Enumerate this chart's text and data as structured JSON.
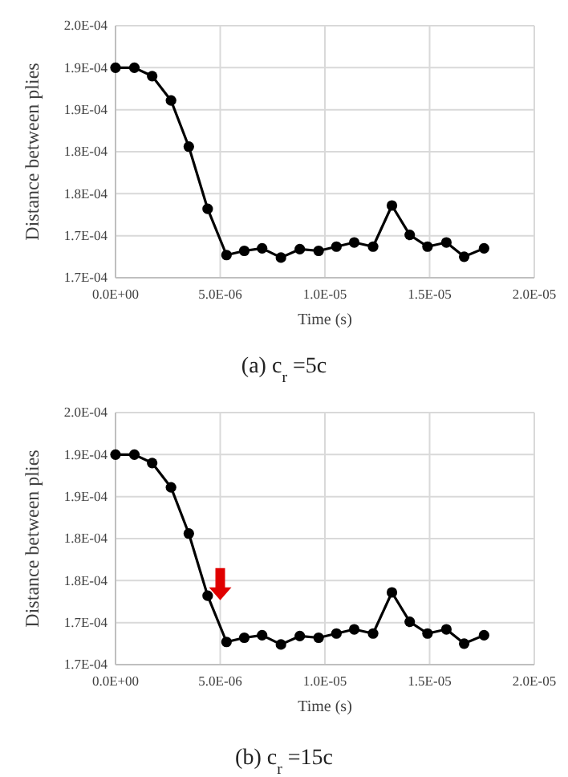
{
  "chart_data": [
    {
      "type": "line",
      "title": "(a)  c$_{r}$ =5c",
      "xlabel": "Time (s)",
      "ylabel": "Distance between plies",
      "x": [
        0,
        9e-07,
        1.75e-06,
        2.65e-06,
        3.5e-06,
        4.4e-06,
        5.3e-06,
        6.15e-06,
        7e-06,
        7.9e-06,
        8.8e-06,
        9.7e-06,
        1.055e-05,
        1.14e-05,
        1.23e-05,
        1.32e-05,
        1.405e-05,
        1.49e-05,
        1.58e-05,
        1.665e-05,
        1.76e-05
      ],
      "values": [
        0.000195,
        0.000195,
        0.000194,
        0.0001911,
        0.0001856,
        0.0001782,
        0.0001727,
        0.0001732,
        0.0001735,
        0.0001724,
        0.0001734,
        0.0001732,
        0.0001737,
        0.0001742,
        0.0001737,
        0.0001786,
        0.0001751,
        0.0001737,
        0.0001742,
        0.0001725,
        0.0001735
      ],
      "color": "#000000",
      "marker": "circle",
      "grid": true,
      "xlim": [
        0,
        2e-05
      ],
      "ylim": [
        0.00017,
        0.0002
      ],
      "xticks": [
        {
          "value": 0,
          "label": "0.0E+00"
        },
        {
          "value": 5e-06,
          "label": "5.0E-06"
        },
        {
          "value": 1e-05,
          "label": "1.0E-05"
        },
        {
          "value": 1.5e-05,
          "label": "1.5E-05"
        },
        {
          "value": 2e-05,
          "label": "2.0E-05"
        }
      ],
      "yticks": [
        {
          "value": 0.00017,
          "label": "1.7E-04"
        },
        {
          "value": 0.000175,
          "label": "1.7E-04"
        },
        {
          "value": 0.00018,
          "label": "1.8E-04"
        },
        {
          "value": 0.000185,
          "label": "1.8E-04"
        },
        {
          "value": 0.00019,
          "label": "1.9E-04"
        },
        {
          "value": 0.000195,
          "label": "1.9E-04"
        },
        {
          "value": 0.0002,
          "label": "2.0E-04"
        }
      ]
    },
    {
      "type": "line",
      "title": "(b)  c$_{r}$ =15c",
      "xlabel": "Time (s)",
      "ylabel": "Distance between plies",
      "x": [
        0,
        9e-07,
        1.75e-06,
        2.65e-06,
        3.5e-06,
        4.4e-06,
        5.3e-06,
        6.15e-06,
        7e-06,
        7.9e-06,
        8.8e-06,
        9.7e-06,
        1.055e-05,
        1.14e-05,
        1.23e-05,
        1.32e-05,
        1.405e-05,
        1.49e-05,
        1.58e-05,
        1.665e-05,
        1.76e-05
      ],
      "values": [
        0.000195,
        0.000195,
        0.000194,
        0.0001911,
        0.0001856,
        0.0001782,
        0.0001727,
        0.0001732,
        0.0001735,
        0.0001724,
        0.0001734,
        0.0001732,
        0.0001737,
        0.0001742,
        0.0001737,
        0.0001786,
        0.0001751,
        0.0001737,
        0.0001742,
        0.0001725,
        0.0001735
      ],
      "color": "#000000",
      "marker": "circle",
      "grid": true,
      "xlim": [
        0,
        2e-05
      ],
      "ylim": [
        0.00017,
        0.0002
      ],
      "xticks": [
        {
          "value": 0,
          "label": "0.0E+00"
        },
        {
          "value": 5e-06,
          "label": "5.0E-06"
        },
        {
          "value": 1e-05,
          "label": "1.0E-05"
        },
        {
          "value": 1.5e-05,
          "label": "1.5E-05"
        },
        {
          "value": 2e-05,
          "label": "2.0E-05"
        }
      ],
      "yticks": [
        {
          "value": 0.00017,
          "label": "1.7E-04"
        },
        {
          "value": 0.000175,
          "label": "1.7E-04"
        },
        {
          "value": 0.00018,
          "label": "1.8E-04"
        },
        {
          "value": 0.000185,
          "label": "1.8E-04"
        },
        {
          "value": 0.00019,
          "label": "1.9E-04"
        },
        {
          "value": 0.000195,
          "label": "1.9E-04"
        },
        {
          "value": 0.0002,
          "label": "2.0E-04"
        }
      ]
    }
  ]
}
